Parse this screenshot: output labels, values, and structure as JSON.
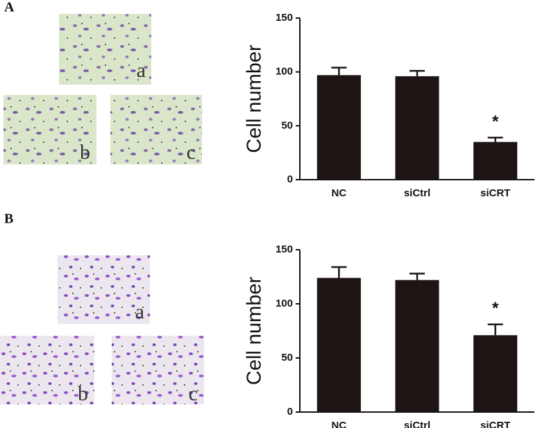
{
  "chart_data": [
    {
      "type": "bar",
      "panel_label": "A",
      "image_labels": [
        "a",
        "b",
        "c"
      ],
      "y_label": "Cell number",
      "categories": [
        "NC",
        "siCtrl",
        "siCRT"
      ],
      "values": [
        97,
        96,
        35
      ],
      "errors": [
        7,
        5,
        4
      ],
      "color": "#1e1414",
      "annotation": "*",
      "ylim": [
        0,
        150
      ],
      "yticks": [
        0,
        50,
        100,
        150
      ]
    },
    {
      "type": "bar",
      "panel_label": "B",
      "image_labels": [
        "a",
        "b",
        "c"
      ],
      "y_label": "Cell number",
      "categories": [
        "NC",
        "siCtrl",
        "siCRT"
      ],
      "values": [
        124,
        122,
        71
      ],
      "errors": [
        10,
        6,
        10
      ],
      "color": "#1e1414",
      "annotation": "*",
      "ylim": [
        0,
        150
      ],
      "yticks": [
        0,
        50,
        100,
        150
      ]
    }
  ]
}
